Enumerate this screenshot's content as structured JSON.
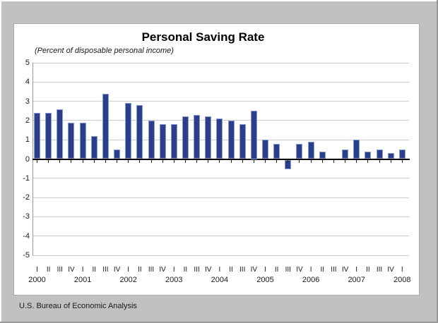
{
  "window": {
    "background_color": "#c1c1c1",
    "panel_color": "#ffffff"
  },
  "chart_data": {
    "type": "bar",
    "title": "Personal Saving Rate",
    "subtitle": "(Percent of disposable personal income)",
    "source": "U.S. Bureau of Economic Analysis",
    "xlabel": "",
    "ylabel": "",
    "ylim": [
      -5,
      5
    ],
    "yticks": [
      5,
      4,
      3,
      2,
      1,
      0,
      -1,
      -2,
      -3,
      -4,
      -5
    ],
    "grid": true,
    "legend": "none",
    "bar_color": "#2a3e8f",
    "bar_edge_color": "#8b9cd1",
    "quarter_labels": [
      "I",
      "II",
      "III",
      "IV"
    ],
    "years": [
      {
        "label": "2000",
        "values": [
          2.4,
          2.4,
          2.6,
          1.9
        ]
      },
      {
        "label": "2001",
        "values": [
          1.9,
          1.2,
          3.4,
          0.5
        ]
      },
      {
        "label": "2002",
        "values": [
          2.9,
          2.8,
          2.0,
          1.8
        ]
      },
      {
        "label": "2003",
        "values": [
          1.8,
          2.2,
          2.3,
          2.2
        ]
      },
      {
        "label": "2004",
        "values": [
          2.1,
          2.0,
          1.8,
          2.5
        ]
      },
      {
        "label": "2005",
        "values": [
          1.0,
          0.8,
          -0.5,
          0.8
        ]
      },
      {
        "label": "2006",
        "values": [
          0.9,
          0.4,
          0.0,
          0.5
        ]
      },
      {
        "label": "2007",
        "values": [
          1.0,
          0.4,
          0.5,
          0.3
        ]
      },
      {
        "label": "2008",
        "values": [
          0.5
        ]
      }
    ]
  }
}
